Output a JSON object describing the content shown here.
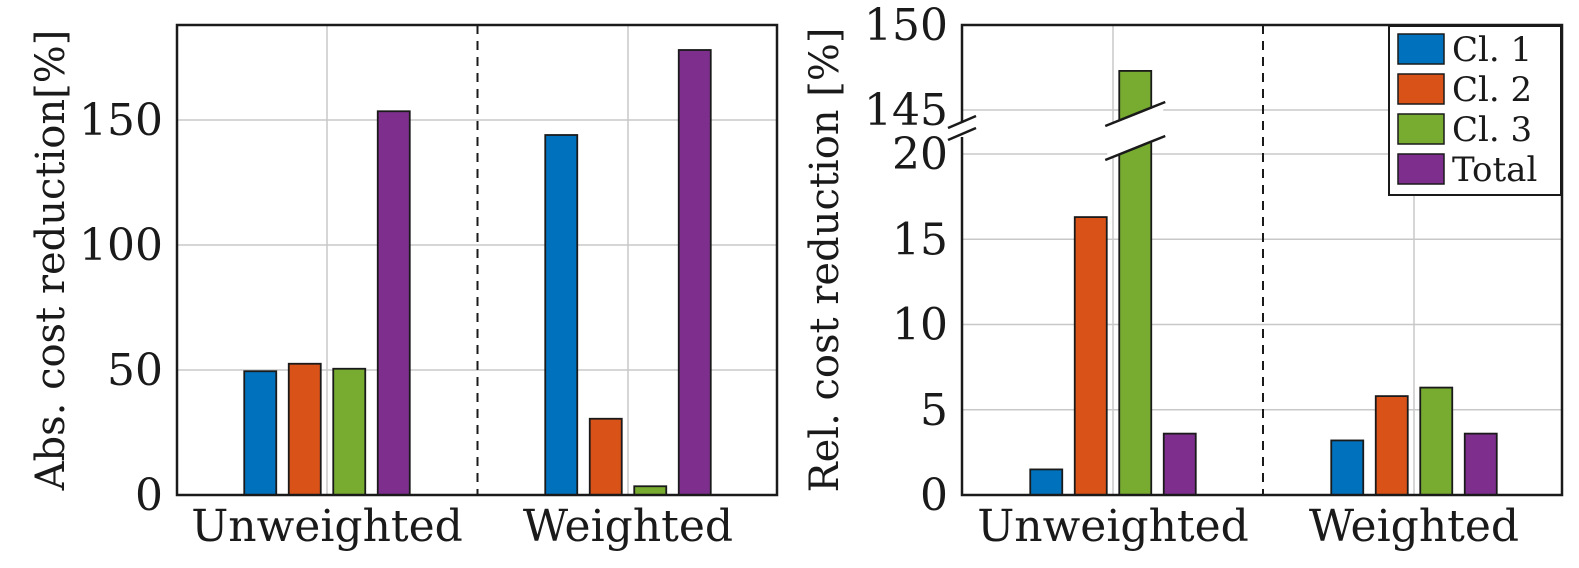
{
  "chart_data": [
    {
      "type": "bar",
      "categories": [
        "Unweighted",
        "Weighted"
      ],
      "ylabel": "Abs. cost reduction[%]",
      "ylim": [
        0,
        188
      ],
      "yticks": [
        0,
        50,
        100,
        150
      ],
      "grid": true,
      "series": [
        {
          "name": "Cl. 1",
          "color": "#0072BD",
          "values": [
            49.5,
            144
          ]
        },
        {
          "name": "Cl. 2",
          "color": "#D95319",
          "values": [
            52.5,
            30.5
          ]
        },
        {
          "name": "Cl. 3",
          "color": "#77AC30",
          "values": [
            50.5,
            3.5
          ]
        },
        {
          "name": "Total",
          "color": "#7E2F8E",
          "values": [
            153.5,
            178
          ]
        }
      ]
    },
    {
      "type": "bar",
      "categories": [
        "Unweighted",
        "Weighted"
      ],
      "ylabel": "Rel. cost reduction [%]",
      "broken_axis": true,
      "ylim_lower": [
        0,
        22
      ],
      "ylim_upper": [
        145,
        150
      ],
      "yticks": [
        0,
        5,
        10,
        15,
        20,
        145,
        150
      ],
      "grid": true,
      "legend": "top-right",
      "series": [
        {
          "name": "Cl. 1",
          "color": "#0072BD",
          "values": [
            1.5,
            3.2
          ]
        },
        {
          "name": "Cl. 2",
          "color": "#D95319",
          "values": [
            16.3,
            5.8
          ]
        },
        {
          "name": "Cl. 3",
          "color": "#77AC30",
          "values": [
            147.3,
            6.3
          ]
        },
        {
          "name": "Total",
          "color": "#7E2F8E",
          "values": [
            3.6,
            3.6
          ]
        }
      ]
    }
  ]
}
